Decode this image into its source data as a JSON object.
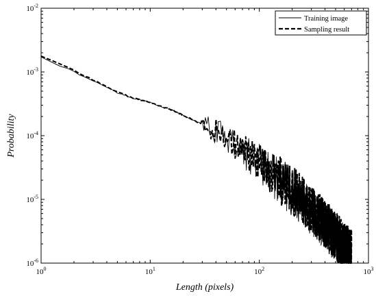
{
  "chart_data": {
    "type": "line",
    "title": "",
    "xlabel": "Length (pixels)",
    "ylabel": "Probability",
    "xscale": "log",
    "yscale": "log",
    "xlim": [
      1,
      1000
    ],
    "ylim": [
      1e-06,
      0.01
    ],
    "grid": false,
    "legend_position": "top-right",
    "x_ticks": [
      {
        "base": "10",
        "exp": "0"
      },
      {
        "base": "10",
        "exp": "1"
      },
      {
        "base": "10",
        "exp": "2"
      },
      {
        "base": "10",
        "exp": "3"
      }
    ],
    "y_ticks": [
      {
        "base": "10",
        "exp": "-6"
      },
      {
        "base": "10",
        "exp": "-5"
      },
      {
        "base": "10",
        "exp": "-4"
      },
      {
        "base": "10",
        "exp": "-3"
      },
      {
        "base": "10",
        "exp": "-2"
      }
    ],
    "series": [
      {
        "name": "Training image",
        "style": "solid",
        "color": "#000000",
        "x": [
          1,
          1.5,
          2,
          3,
          4,
          5,
          7,
          10,
          15,
          20,
          30,
          50,
          70,
          100,
          150,
          200,
          300,
          400,
          500,
          600,
          700
        ],
        "y": [
          0.00175,
          0.00125,
          0.001,
          0.00072,
          0.00058,
          0.000475,
          0.00039,
          0.00033,
          0.00026,
          0.00021,
          0.00015,
          9.5e-05,
          6e-05,
          3.7e-05,
          2e-05,
          1.3e-05,
          6.5e-06,
          3.8e-06,
          2.5e-06,
          1.7e-06,
          1.2e-06
        ]
      },
      {
        "name": "Sampling result",
        "style": "dashed",
        "color": "#000000",
        "x": [
          1,
          1.5,
          2,
          3,
          4,
          5,
          7,
          10,
          15,
          20,
          30,
          50,
          70,
          100,
          150,
          200,
          300,
          400,
          500,
          600,
          700
        ],
        "y": [
          0.0018,
          0.0013,
          0.00105,
          0.00075,
          0.0006,
          0.00048,
          0.00039,
          0.00033,
          0.00026,
          0.00021,
          0.00015,
          0.0001,
          6.2e-05,
          3.9e-05,
          2.1e-05,
          1.4e-05,
          7e-06,
          4.2e-06,
          2.7e-06,
          1.8e-06,
          1.4e-06
        ]
      }
    ]
  }
}
